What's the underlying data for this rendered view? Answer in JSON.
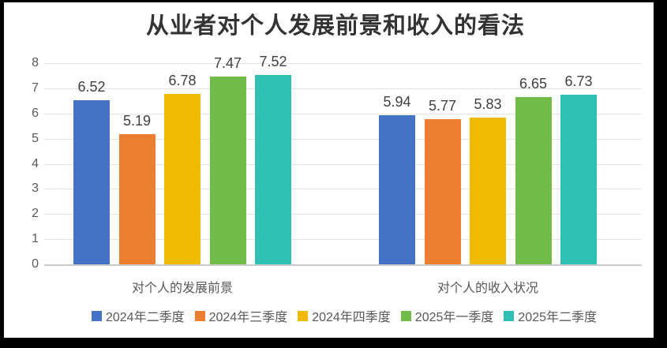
{
  "window": {
    "background": "#000000",
    "chart_background": "#ffffff"
  },
  "chart_data": {
    "type": "bar",
    "title": "从业者对个人发展前景和收入的看法",
    "categories": [
      "对个人的发展前景",
      "对个人的收入状况"
    ],
    "series": [
      {
        "name": "2024年二季度",
        "color": "#4472C4",
        "values": [
          6.52,
          5.94
        ]
      },
      {
        "name": "2024年三季度",
        "color": "#ED7D31",
        "values": [
          5.19,
          5.77
        ]
      },
      {
        "name": "2024年四季度",
        "color": "#EFBA00",
        "values": [
          6.78,
          5.83
        ]
      },
      {
        "name": "2025年一季度",
        "color": "#72BC4A",
        "values": [
          7.47,
          6.65
        ]
      },
      {
        "name": "2025年二季度",
        "color": "#2FBFB3",
        "values": [
          7.52,
          6.73
        ]
      }
    ],
    "ylim": [
      0,
      8
    ],
    "yticks": [
      0,
      1,
      2,
      3,
      4,
      5,
      6,
      7,
      8
    ],
    "grid": true,
    "legend_position": "bottom",
    "data_labels": true,
    "text_colors": {
      "title": "#333333",
      "value_labels": "#404040",
      "axis_labels": "#595959"
    }
  }
}
